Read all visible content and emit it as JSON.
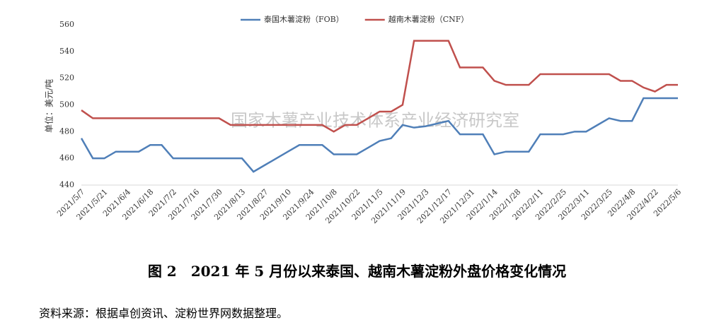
{
  "chart_data": {
    "type": "line",
    "y_label": "单位：美元/吨",
    "watermark": "国家木薯产业技术体系产业经济研究室",
    "categories": [
      "2021/5/7",
      null,
      "2021/5/21",
      null,
      "2021/6/4",
      null,
      "2021/6/18",
      null,
      "2021/7/2",
      null,
      "2021/7/16",
      null,
      "2021/7/30",
      null,
      "2021/8/13",
      null,
      "2021/8/27",
      null,
      "2021/9/10",
      null,
      "2021/9/24",
      null,
      "2021/10/8",
      null,
      "2021/10/22",
      null,
      "2021/11/5",
      null,
      "2021/11/19",
      null,
      "2021/12/3",
      null,
      "2021/12/17",
      null,
      "2021/12/31",
      null,
      "2022/1/14",
      null,
      "2022/1/28",
      null,
      "2022/2/11",
      null,
      "2022/2/25",
      null,
      "2022/3/11",
      null,
      "2022/3/25",
      null,
      "2022/4/8",
      null,
      "2022/4/22",
      null,
      "2022/5/6"
    ],
    "series": [
      {
        "name": "泰国木薯淀粉（FOB）",
        "color": "#4f7fb8",
        "values": [
          475,
          460,
          460,
          465,
          465,
          465,
          470,
          470,
          460,
          460,
          460,
          460,
          460,
          460,
          460,
          450,
          455,
          460,
          465,
          470,
          470,
          470,
          463,
          463,
          463,
          468,
          473,
          475,
          485,
          483,
          484,
          486,
          488,
          478,
          478,
          478,
          463,
          465,
          465,
          465,
          478,
          478,
          478,
          480,
          480,
          485,
          490,
          488,
          488,
          505,
          505,
          505,
          505
        ]
      },
      {
        "name": "越南木薯淀粉（CNF）",
        "color": "#c0504d",
        "values": [
          496,
          490,
          490,
          490,
          490,
          490,
          490,
          490,
          490,
          490,
          490,
          490,
          490,
          485,
          485,
          485,
          485,
          485,
          485,
          485,
          485,
          485,
          480,
          485,
          485,
          490,
          495,
          495,
          500,
          548,
          548,
          548,
          548,
          528,
          528,
          528,
          518,
          515,
          515,
          515,
          523,
          523,
          523,
          523,
          523,
          523,
          523,
          518,
          518,
          513,
          510,
          515,
          515
        ]
      }
    ],
    "ylim": [
      440,
      560
    ],
    "yticks": [
      440,
      460,
      480,
      500,
      520,
      540,
      560
    ],
    "grid": false,
    "legend": "top"
  },
  "caption": "图 2　2021 年 5 月份以来泰国、越南木薯淀粉外盘价格变化情况",
  "source": "资料来源：根据卓创资讯、淀粉世界网数据整理。"
}
